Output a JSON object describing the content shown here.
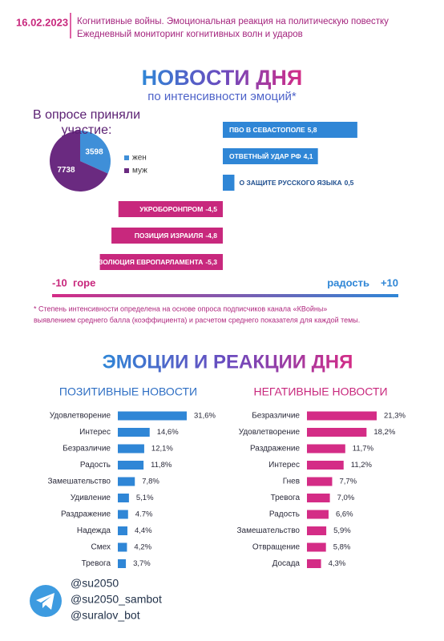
{
  "header": {
    "date": "16.02.2023",
    "line1": "Когнитивные войны. Эмоциональная реакция на политическую повестку",
    "line2": "Ежедневный мониторинг когнитивных волн и ударов"
  },
  "news": {
    "title": "НОВОСТИ ДНЯ",
    "subtitle": "по интенсивности эмоций*",
    "footnote": [
      "* Степень интенсивности определена на основе опроса подписчиков канала «КВойны»",
      "выявлением среднего балла (коэффициента) и расчетом среднего показателя для каждой темы."
    ]
  },
  "emotions": {
    "title": "ЭМОЦИИ И РЕАКЦИИ ДНЯ"
  },
  "chart_data": [
    {
      "type": "pie",
      "title": "В опросе приняли участие:",
      "categories": [
        "жен",
        "муж"
      ],
      "values": [
        3598,
        7738
      ],
      "colors": [
        "#3f8fd8",
        "#6a2a80"
      ]
    },
    {
      "type": "bar",
      "categories": [
        "ПВО В СЕВАСТОПОЛЕ",
        "ОТВЕТНЫЙ УДАР РФ",
        "О ЗАЩИТЕ РУССКОГО ЯЗЫКА",
        "УКРОБОРОНПРОМ",
        "ПОЗИЦИЯ ИЗРАИЛЯ",
        "РЕЗОЛЮЦИЯ ЕВРОПАРЛАМЕНТА"
      ],
      "values": [
        5.8,
        4.1,
        0.5,
        -4.5,
        -4.8,
        -5.3
      ],
      "value_labels": [
        "5,8",
        "4,1",
        "0,5",
        "-4,5",
        "-4,8",
        "-5,3"
      ],
      "colors": [
        "#2f86d6",
        "#2f86d6",
        "#2f86d6",
        "#c8287d",
        "#c8287d",
        "#c8287d"
      ],
      "xlim": [
        -10,
        10
      ],
      "xticks": [
        -10,
        {
          "value": 10,
          "label": "+10"
        }
      ],
      "annotations": [
        "горе",
        "радость"
      ]
    },
    {
      "type": "bar",
      "title": "ПОЗИТИВНЫЕ НОВОСТИ",
      "color": "#2f86d6",
      "categories": [
        "Удовлетворение",
        "Интерес",
        "Безразличие",
        "Радость",
        "Замешательство",
        "Удивление",
        "Раздражение",
        "Надежда",
        "Смех",
        "Тревога"
      ],
      "values": [
        31.6,
        14.6,
        12.1,
        11.8,
        7.8,
        5.1,
        4.7,
        4.4,
        4.2,
        3.7
      ],
      "value_labels": [
        "31,6%",
        "14,6%",
        "12,1%",
        "11,8%",
        "7,8%",
        "5,1%",
        "4.7%",
        "4,4%",
        "4,2%",
        "3,7%"
      ]
    },
    {
      "type": "bar",
      "title": "НЕГАТИВНЫЕ НОВОСТИ",
      "color": "#d42c86",
      "categories": [
        "Безразличие",
        "Удовлетворение",
        "Раздражение",
        "Интерес",
        "Гнев",
        "Тревога",
        "Радость",
        "Замешательство",
        "Отвращение",
        "Досада"
      ],
      "values": [
        21.3,
        18.2,
        11.7,
        11.2,
        7.7,
        7.0,
        6.6,
        5.9,
        5.8,
        4.3
      ],
      "value_labels": [
        "21,3%",
        "18,2%",
        "11,7%",
        "11,2%",
        "7,7%",
        "7,0%",
        "6,6%",
        "5,9%",
        "5,8%",
        "4,3%"
      ]
    }
  ],
  "footer": {
    "links": [
      "@su2050",
      "@su2050_sambot",
      "@suralov_bot"
    ]
  }
}
